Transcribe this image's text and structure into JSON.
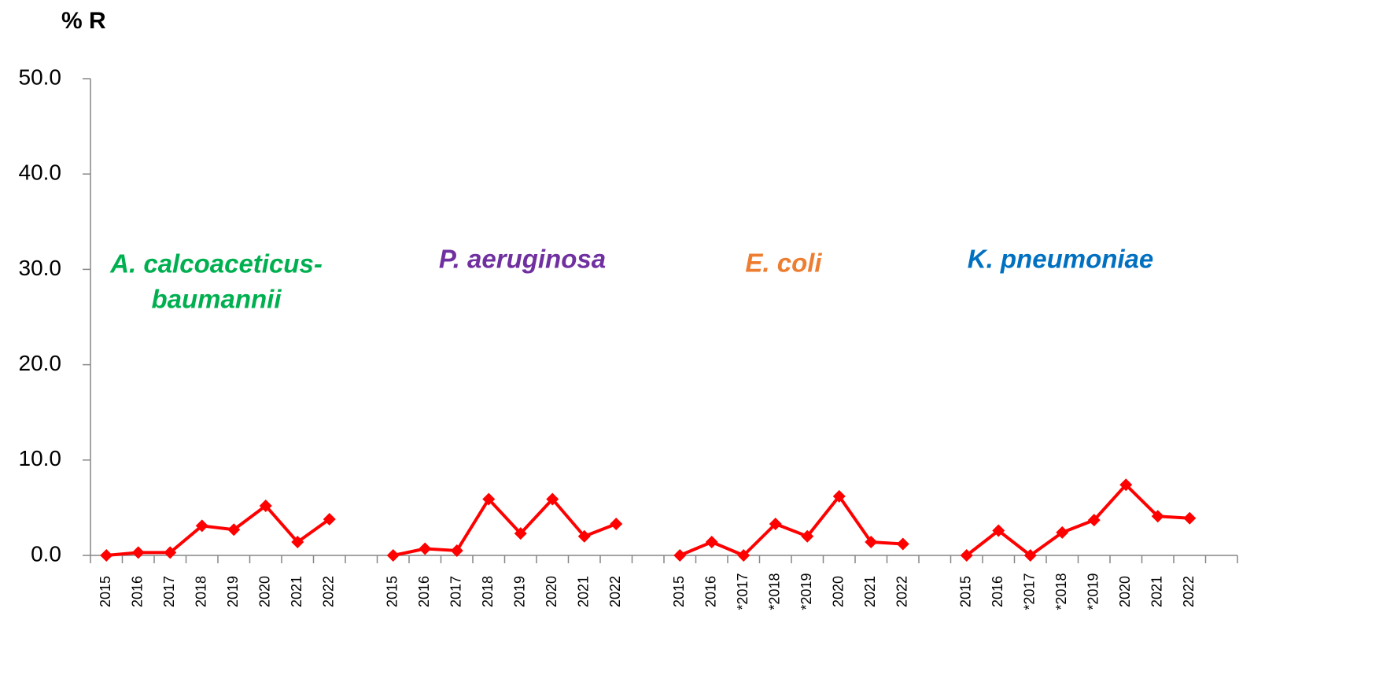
{
  "chart_data": {
    "type": "line",
    "title": "% R",
    "annotations": [
      {
        "lines": [
          "A. calcoaceticus-",
          "baumannii"
        ],
        "color": "#00b050"
      },
      {
        "lines": [
          "P. aeruginosa"
        ],
        "color": "#7030a0"
      },
      {
        "lines": [
          "E. coli"
        ],
        "color": "#ed7d31"
      },
      {
        "lines": [
          "K. pneumoniae"
        ],
        "color": "#0070c0"
      }
    ],
    "categories": [
      "2015",
      "2016",
      "2017",
      "2018",
      "2019",
      "2020",
      "2021",
      "2022",
      null,
      "2015",
      "2016",
      "2017",
      "2018",
      "2019",
      "2020",
      "2021",
      "2022",
      null,
      "2015",
      "2016",
      "*2017",
      "*2018",
      "*2019",
      "2020",
      "2021",
      "2022",
      null,
      "2015",
      "2016",
      "*2017",
      "*2018",
      "*2019",
      "2020",
      "2021",
      "2022",
      null
    ],
    "series": [
      {
        "color": "#ff0000",
        "values": [
          0,
          0.3,
          0.3,
          3.1,
          2.7,
          5.2,
          1.4,
          3.8,
          null,
          0,
          0.7,
          0.5,
          5.9,
          2.3,
          5.9,
          2.0,
          3.3,
          null,
          0,
          1.4,
          0,
          3.3,
          2.0,
          6.2,
          1.4,
          1.2,
          null,
          0,
          2.6,
          0,
          2.4,
          3.7,
          7.4,
          4.1,
          3.9,
          null
        ]
      }
    ],
    "ylim": [
      0,
      50
    ],
    "yticks": [
      {
        "value": 0,
        "label": "0.0"
      },
      {
        "value": 10,
        "label": "10.0"
      },
      {
        "value": 20,
        "label": "20.0"
      },
      {
        "value": 30,
        "label": "30.0"
      },
      {
        "value": 40,
        "label": "40.0"
      },
      {
        "value": 50,
        "label": "50.0"
      }
    ]
  }
}
